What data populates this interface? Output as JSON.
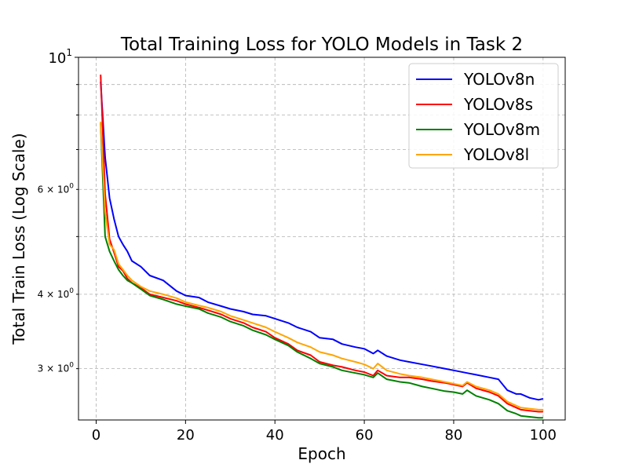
{
  "chart_data": {
    "type": "line",
    "title": "Total Training Loss for YOLO Models in Task 2",
    "xlabel": "Epoch",
    "ylabel": "Total Train Loss (Log Scale)",
    "yscale": "log",
    "xlim": [
      -3.95,
      104.95
    ],
    "ylim": [
      2.46,
      10.0
    ],
    "grid": true,
    "legend_position": "top-right",
    "x_ticks": [
      0,
      20,
      40,
      60,
      80,
      100
    ],
    "x_tick_labels": [
      "0",
      "20",
      "40",
      "60",
      "80",
      "100"
    ],
    "y_major_ticks": [
      10
    ],
    "y_major_tick_labels": [
      "10^1"
    ],
    "y_minor_ticks": [
      3,
      4,
      6
    ],
    "y_minor_tick_labels": [
      "3 × 10^0",
      "4 × 10^0",
      "6 × 10^0"
    ],
    "y_minor_unlabeled_ticks": [
      5,
      7,
      8,
      9
    ],
    "series": [
      {
        "name": "YOLOv8n",
        "color": "#0000ff",
        "x": [
          1,
          2,
          3,
          4,
          5,
          6,
          7,
          8,
          10,
          12,
          15,
          18,
          20,
          23,
          25,
          28,
          30,
          33,
          35,
          38,
          40,
          43,
          45,
          48,
          50,
          53,
          55,
          58,
          60,
          62,
          63,
          65,
          68,
          70,
          73,
          75,
          78,
          80,
          83,
          85,
          88,
          90,
          92,
          94,
          95,
          97,
          99,
          100
        ],
        "y": [
          9.1,
          6.8,
          5.8,
          5.35,
          5.0,
          4.85,
          4.72,
          4.55,
          4.45,
          4.3,
          4.22,
          4.05,
          3.98,
          3.95,
          3.88,
          3.82,
          3.78,
          3.74,
          3.7,
          3.68,
          3.64,
          3.58,
          3.52,
          3.46,
          3.38,
          3.36,
          3.3,
          3.26,
          3.24,
          3.18,
          3.22,
          3.15,
          3.1,
          3.08,
          3.05,
          3.03,
          3.0,
          2.98,
          2.95,
          2.93,
          2.9,
          2.88,
          2.76,
          2.72,
          2.72,
          2.68,
          2.66,
          2.67
        ]
      },
      {
        "name": "YOLOv8s",
        "color": "#ff0000",
        "x": [
          1,
          2,
          3,
          4,
          5,
          6,
          7,
          8,
          10,
          12,
          15,
          18,
          20,
          23,
          25,
          28,
          30,
          33,
          35,
          38,
          40,
          43,
          45,
          48,
          50,
          53,
          55,
          58,
          60,
          62,
          63,
          65,
          68,
          70,
          73,
          75,
          78,
          80,
          82,
          83,
          85,
          88,
          90,
          92,
          94,
          95,
          97,
          99,
          100
        ],
        "y": [
          9.35,
          5.9,
          4.95,
          4.7,
          4.45,
          4.38,
          4.25,
          4.18,
          4.1,
          4.0,
          3.95,
          3.9,
          3.85,
          3.8,
          3.76,
          3.7,
          3.64,
          3.58,
          3.52,
          3.46,
          3.38,
          3.3,
          3.22,
          3.16,
          3.08,
          3.04,
          3.02,
          2.98,
          2.96,
          2.92,
          2.98,
          2.92,
          2.9,
          2.9,
          2.88,
          2.86,
          2.84,
          2.82,
          2.8,
          2.84,
          2.78,
          2.74,
          2.7,
          2.62,
          2.58,
          2.56,
          2.55,
          2.54,
          2.54
        ]
      },
      {
        "name": "YOLOv8m",
        "color": "#008000",
        "x": [
          1,
          2,
          3,
          4,
          5,
          6,
          7,
          8,
          10,
          12,
          15,
          18,
          20,
          23,
          25,
          28,
          30,
          33,
          35,
          38,
          40,
          43,
          45,
          48,
          50,
          53,
          55,
          58,
          60,
          62,
          63,
          65,
          68,
          70,
          73,
          75,
          78,
          80,
          82,
          83,
          85,
          88,
          90,
          92,
          94,
          95,
          97,
          99,
          100
        ],
        "y": [
          7.75,
          5.0,
          4.72,
          4.55,
          4.4,
          4.3,
          4.22,
          4.18,
          4.08,
          3.98,
          3.92,
          3.85,
          3.82,
          3.78,
          3.72,
          3.66,
          3.6,
          3.54,
          3.48,
          3.42,
          3.36,
          3.28,
          3.2,
          3.12,
          3.06,
          3.02,
          2.98,
          2.95,
          2.93,
          2.9,
          2.95,
          2.88,
          2.85,
          2.84,
          2.8,
          2.78,
          2.75,
          2.74,
          2.72,
          2.76,
          2.7,
          2.66,
          2.62,
          2.55,
          2.52,
          2.5,
          2.49,
          2.48,
          2.48
        ]
      },
      {
        "name": "YOLOv8l",
        "color": "#ffa500",
        "x": [
          1,
          2,
          3,
          4,
          5,
          6,
          7,
          8,
          10,
          12,
          15,
          18,
          20,
          23,
          25,
          28,
          30,
          33,
          35,
          38,
          40,
          43,
          45,
          48,
          50,
          53,
          55,
          58,
          60,
          62,
          63,
          65,
          68,
          70,
          73,
          75,
          78,
          80,
          82,
          83,
          85,
          88,
          90,
          92,
          94,
          95,
          97,
          99,
          100
        ],
        "y": [
          7.8,
          5.5,
          4.85,
          4.75,
          4.5,
          4.4,
          4.3,
          4.22,
          4.12,
          4.05,
          4.0,
          3.94,
          3.88,
          3.83,
          3.8,
          3.74,
          3.68,
          3.62,
          3.58,
          3.52,
          3.46,
          3.38,
          3.32,
          3.26,
          3.2,
          3.16,
          3.12,
          3.08,
          3.05,
          3.0,
          3.06,
          2.98,
          2.94,
          2.92,
          2.9,
          2.88,
          2.85,
          2.83,
          2.81,
          2.85,
          2.8,
          2.76,
          2.72,
          2.64,
          2.6,
          2.58,
          2.57,
          2.56,
          2.56
        ]
      }
    ]
  }
}
